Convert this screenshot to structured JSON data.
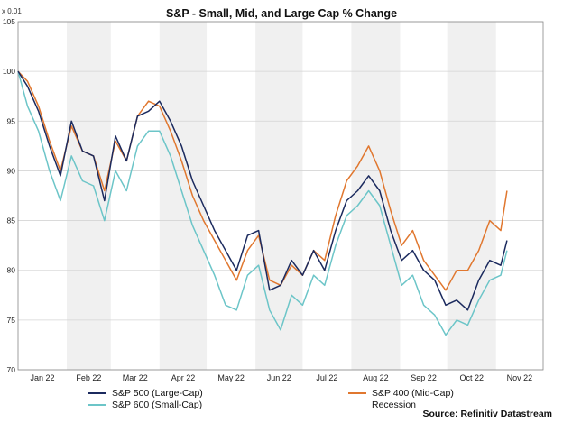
{
  "chart_data": {
    "type": "line",
    "title": "S&P - Small, Mid, and Large Cap % Change",
    "y_unit_label": "x 0.01",
    "ylim": [
      70,
      105
    ],
    "yticks": [
      70,
      75,
      80,
      85,
      90,
      95,
      100,
      105
    ],
    "months": [
      "Jan 22",
      "Feb 22",
      "Mar 22",
      "Apr 22",
      "May 22",
      "Jun 22",
      "Jul 22",
      "Aug 22",
      "Sep 22",
      "Oct 22",
      "Nov 22"
    ],
    "grid": true,
    "recession_shading": "alternating months, light grey",
    "x": [
      "2022-01-01",
      "2022-01-07",
      "2022-01-14",
      "2022-01-21",
      "2022-01-28",
      "2022-02-04",
      "2022-02-11",
      "2022-02-18",
      "2022-02-25",
      "2022-03-04",
      "2022-03-11",
      "2022-03-18",
      "2022-03-25",
      "2022-04-01",
      "2022-04-08",
      "2022-04-15",
      "2022-04-22",
      "2022-04-29",
      "2022-05-06",
      "2022-05-13",
      "2022-05-20",
      "2022-05-27",
      "2022-06-03",
      "2022-06-10",
      "2022-06-17",
      "2022-06-24",
      "2022-07-01",
      "2022-07-08",
      "2022-07-15",
      "2022-07-22",
      "2022-07-29",
      "2022-08-05",
      "2022-08-12",
      "2022-08-19",
      "2022-08-26",
      "2022-09-02",
      "2022-09-09",
      "2022-09-16",
      "2022-09-23",
      "2022-09-30",
      "2022-10-07",
      "2022-10-14",
      "2022-10-21",
      "2022-10-28",
      "2022-11-04",
      "2022-11-08"
    ],
    "series": [
      {
        "name": "S&P 500 (Large-Cap)",
        "color": "#1b2a5e",
        "values": [
          100,
          98.5,
          96,
          92.5,
          89.5,
          95,
          92,
          91.5,
          87,
          93.5,
          91,
          95.5,
          96,
          97,
          95,
          92.5,
          89,
          86.5,
          84,
          82,
          80,
          83.5,
          84,
          78,
          78.5,
          81,
          79.5,
          82,
          80,
          84,
          87,
          88,
          89.5,
          88,
          84,
          81,
          82,
          80,
          79,
          76.5,
          77,
          76,
          79,
          81,
          80.5,
          83
        ]
      },
      {
        "name": "S&P 400 (Mid-Cap)",
        "color": "#e0772f",
        "values": [
          100,
          99,
          96.5,
          93,
          90,
          94.5,
          92,
          91.5,
          88,
          93,
          91,
          95.5,
          97,
          96.5,
          94,
          91,
          87.5,
          85,
          83,
          81,
          79,
          82,
          83.5,
          79,
          78.5,
          80.5,
          79.5,
          82,
          81,
          85.5,
          89,
          90.5,
          92.5,
          90,
          86,
          82.5,
          84,
          81,
          79.5,
          78,
          80,
          80,
          82,
          85,
          84,
          88
        ]
      },
      {
        "name": "S&P 600 (Small-Cap)",
        "color": "#6cc5c8",
        "values": [
          100,
          96.5,
          94,
          90,
          87,
          91.5,
          89,
          88.5,
          85,
          90,
          88,
          92.5,
          94,
          94,
          91.5,
          88,
          84.5,
          82,
          79.5,
          76.5,
          76,
          79.5,
          80.5,
          76,
          74,
          77.5,
          76.5,
          79.5,
          78.5,
          82.5,
          85.5,
          86.5,
          88,
          86.5,
          82.5,
          78.5,
          79.5,
          76.5,
          75.5,
          73.5,
          75,
          74.5,
          77,
          79,
          79.5,
          82
        ]
      }
    ]
  },
  "legend": {
    "sp500": "S&P 500 (Large-Cap)",
    "sp600": "S&P 600 (Small-Cap)",
    "sp400": "S&P 400 (Mid-Cap)",
    "recession": "Recession"
  },
  "source": "Source: Refinitiv Datastream",
  "colors": {
    "sp500": "#1b2a5e",
    "sp400": "#e0772f",
    "sp600": "#6cc5c8",
    "recession": "#f0f0f0"
  }
}
